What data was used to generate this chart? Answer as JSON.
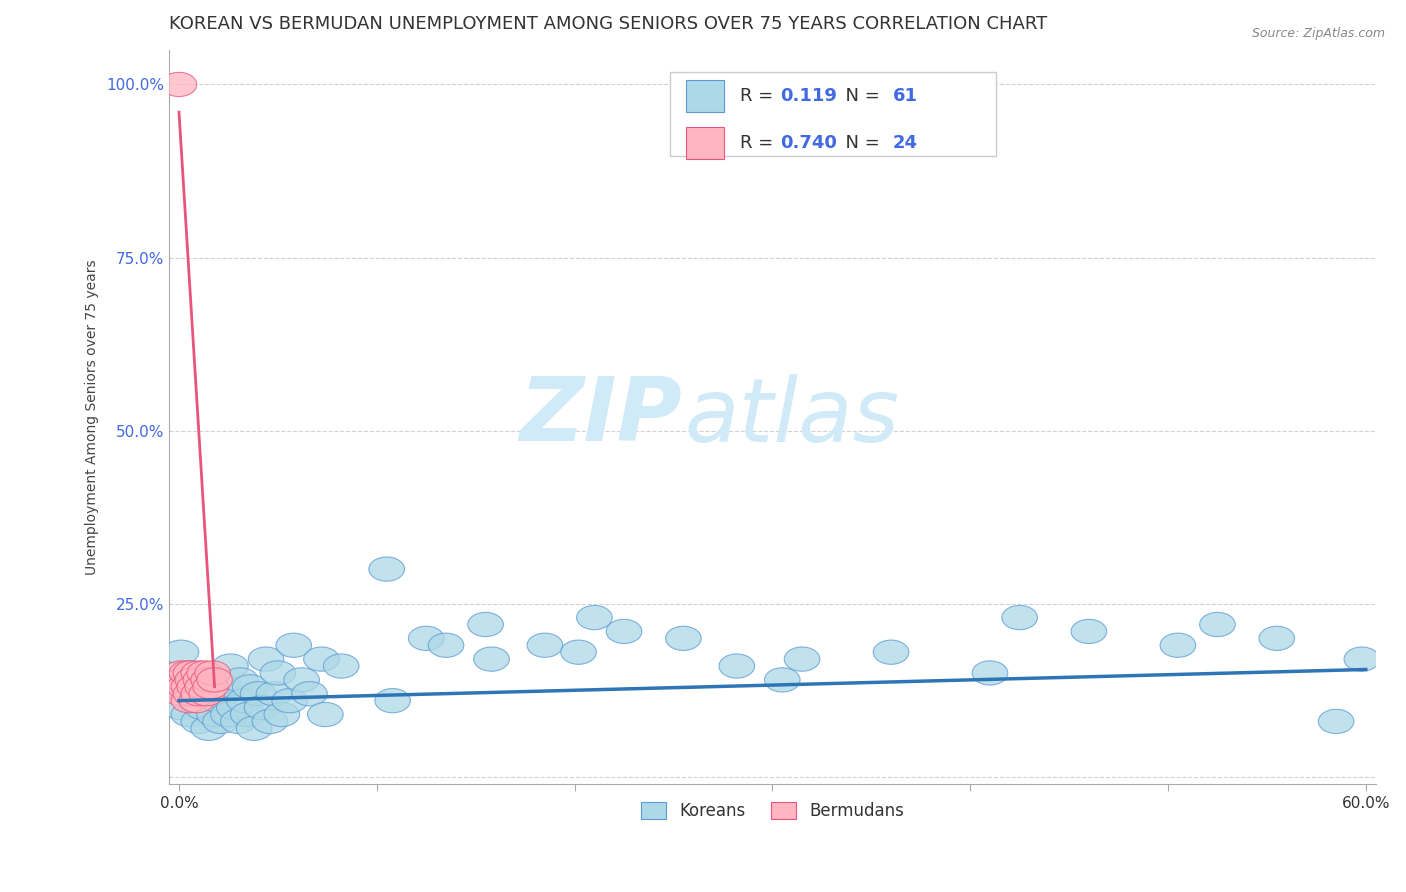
{
  "title": "KOREAN VS BERMUDAN UNEMPLOYMENT AMONG SENIORS OVER 75 YEARS CORRELATION CHART",
  "source": "Source: ZipAtlas.com",
  "ylabel": "Unemployment Among Seniors over 75 years",
  "xlim": [
    -0.005,
    0.605
  ],
  "ylim": [
    -0.01,
    1.05
  ],
  "xticks": [
    0.0,
    0.1,
    0.2,
    0.3,
    0.4,
    0.5,
    0.6
  ],
  "xticklabels": [
    "0.0%",
    "",
    "",
    "",
    "",
    "",
    "60.0%"
  ],
  "yticks": [
    0.0,
    0.25,
    0.5,
    0.75,
    1.0
  ],
  "yticklabels": [
    "",
    "25.0%",
    "50.0%",
    "75.0%",
    "100.0%"
  ],
  "korean_color": "#add8e6",
  "bermudan_color": "#ffb6c1",
  "korean_edge_color": "#5b9bd5",
  "bermudan_edge_color": "#e8547a",
  "korean_line_color": "#2e75b6",
  "bermudan_line_color": "#e8547a",
  "R_korean": 0.119,
  "N_korean": 61,
  "R_bermudan": 0.74,
  "N_bermudan": 24,
  "background_color": "#ffffff",
  "grid_color": "#cccccc",
  "title_fontsize": 13,
  "axis_label_fontsize": 10,
  "tick_fontsize": 11,
  "watermark_color": "#d0eaf8",
  "korean_x": [
    0.001,
    0.001,
    0.001,
    0.005,
    0.006,
    0.008,
    0.01,
    0.011,
    0.012,
    0.015,
    0.016,
    0.018,
    0.02,
    0.021,
    0.023,
    0.025,
    0.026,
    0.028,
    0.03,
    0.031,
    0.033,
    0.035,
    0.036,
    0.038,
    0.04,
    0.042,
    0.044,
    0.046,
    0.048,
    0.05,
    0.052,
    0.056,
    0.058,
    0.062,
    0.066,
    0.072,
    0.074,
    0.082,
    0.105,
    0.108,
    0.125,
    0.135,
    0.155,
    0.158,
    0.185,
    0.202,
    0.21,
    0.225,
    0.255,
    0.282,
    0.305,
    0.315,
    0.36,
    0.41,
    0.425,
    0.46,
    0.505,
    0.525,
    0.555,
    0.585,
    0.598
  ],
  "korean_y": [
    0.1,
    0.14,
    0.18,
    0.09,
    0.15,
    0.11,
    0.08,
    0.13,
    0.1,
    0.07,
    0.12,
    0.09,
    0.11,
    0.08,
    0.13,
    0.09,
    0.16,
    0.1,
    0.08,
    0.14,
    0.11,
    0.09,
    0.13,
    0.07,
    0.12,
    0.1,
    0.17,
    0.08,
    0.12,
    0.15,
    0.09,
    0.11,
    0.19,
    0.14,
    0.12,
    0.17,
    0.09,
    0.16,
    0.3,
    0.11,
    0.2,
    0.19,
    0.22,
    0.17,
    0.19,
    0.18,
    0.23,
    0.21,
    0.2,
    0.16,
    0.14,
    0.17,
    0.18,
    0.15,
    0.23,
    0.21,
    0.19,
    0.22,
    0.2,
    0.08,
    0.17
  ],
  "bermudan_x": [
    0.0,
    0.0,
    0.001,
    0.001,
    0.002,
    0.003,
    0.004,
    0.005,
    0.005,
    0.006,
    0.006,
    0.007,
    0.008,
    0.009,
    0.01,
    0.01,
    0.011,
    0.012,
    0.013,
    0.014,
    0.015,
    0.016,
    0.017,
    0.018
  ],
  "bermudan_y": [
    1.0,
    0.13,
    0.15,
    0.12,
    0.14,
    0.13,
    0.15,
    0.13,
    0.11,
    0.15,
    0.12,
    0.14,
    0.13,
    0.11,
    0.15,
    0.12,
    0.14,
    0.13,
    0.15,
    0.12,
    0.14,
    0.13,
    0.15,
    0.14
  ],
  "bermudan_line_x": [
    0.0,
    0.018
  ],
  "bermudan_line_y": [
    0.96,
    0.13
  ],
  "korean_line_x": [
    0.0,
    0.6
  ],
  "korean_line_y": [
    0.11,
    0.155
  ]
}
